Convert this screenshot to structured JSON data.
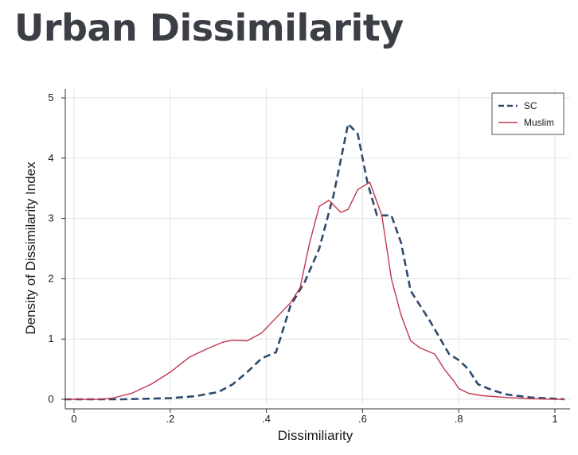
{
  "page": {
    "title": "Urban Dissimilarity"
  },
  "chart_data": {
    "type": "line",
    "title": "",
    "xlabel": "Dissimiliarity",
    "ylabel": "Density of Dissimilarity Index",
    "xlim": [
      -0.02,
      1.02
    ],
    "ylim": [
      0,
      5
    ],
    "x_ticks": [
      0,
      0.2,
      0.4,
      0.6,
      0.8,
      1
    ],
    "x_tick_labels": [
      "0",
      ".2",
      ".4",
      ".6",
      ".8",
      "1"
    ],
    "y_ticks": [
      0,
      1,
      2,
      3,
      4,
      5
    ],
    "y_tick_labels": [
      "0",
      "1",
      "2",
      "3",
      "4",
      "5"
    ],
    "grid": true,
    "legend": "top-right",
    "series": [
      {
        "name": "SC",
        "color": "#2e4a6b",
        "dash": "dashed",
        "x": [
          -0.02,
          0.1,
          0.2,
          0.25,
          0.3,
          0.33,
          0.36,
          0.39,
          0.42,
          0.45,
          0.48,
          0.51,
          0.54,
          0.57,
          0.59,
          0.61,
          0.63,
          0.66,
          0.68,
          0.7,
          0.74,
          0.78,
          0.8,
          0.82,
          0.84,
          0.87,
          0.9,
          0.95,
          1.0,
          1.02
        ],
        "y": [
          0,
          0.0,
          0.02,
          0.05,
          0.12,
          0.25,
          0.45,
          0.68,
          0.78,
          1.55,
          1.95,
          2.5,
          3.4,
          4.57,
          4.4,
          3.6,
          3.05,
          3.05,
          2.6,
          1.8,
          1.3,
          0.75,
          0.65,
          0.5,
          0.25,
          0.15,
          0.08,
          0.03,
          0.01,
          0
        ]
      },
      {
        "name": "Muslim",
        "color": "#c0384f",
        "dash": "solid",
        "x": [
          -0.02,
          0.05,
          0.08,
          0.12,
          0.16,
          0.2,
          0.24,
          0.28,
          0.31,
          0.33,
          0.36,
          0.39,
          0.42,
          0.45,
          0.47,
          0.49,
          0.51,
          0.53,
          0.555,
          0.57,
          0.59,
          0.615,
          0.64,
          0.66,
          0.68,
          0.7,
          0.72,
          0.75,
          0.77,
          0.79,
          0.8,
          0.82,
          0.85,
          0.9,
          0.95,
          1.0,
          1.02
        ],
        "y": [
          0,
          0.0,
          0.02,
          0.1,
          0.25,
          0.45,
          0.7,
          0.85,
          0.95,
          0.98,
          0.97,
          1.1,
          1.35,
          1.6,
          1.85,
          2.6,
          3.2,
          3.3,
          3.1,
          3.15,
          3.48,
          3.6,
          3.05,
          2.0,
          1.4,
          0.97,
          0.85,
          0.75,
          0.5,
          0.3,
          0.18,
          0.1,
          0.06,
          0.03,
          0.01,
          0,
          0
        ]
      }
    ]
  }
}
